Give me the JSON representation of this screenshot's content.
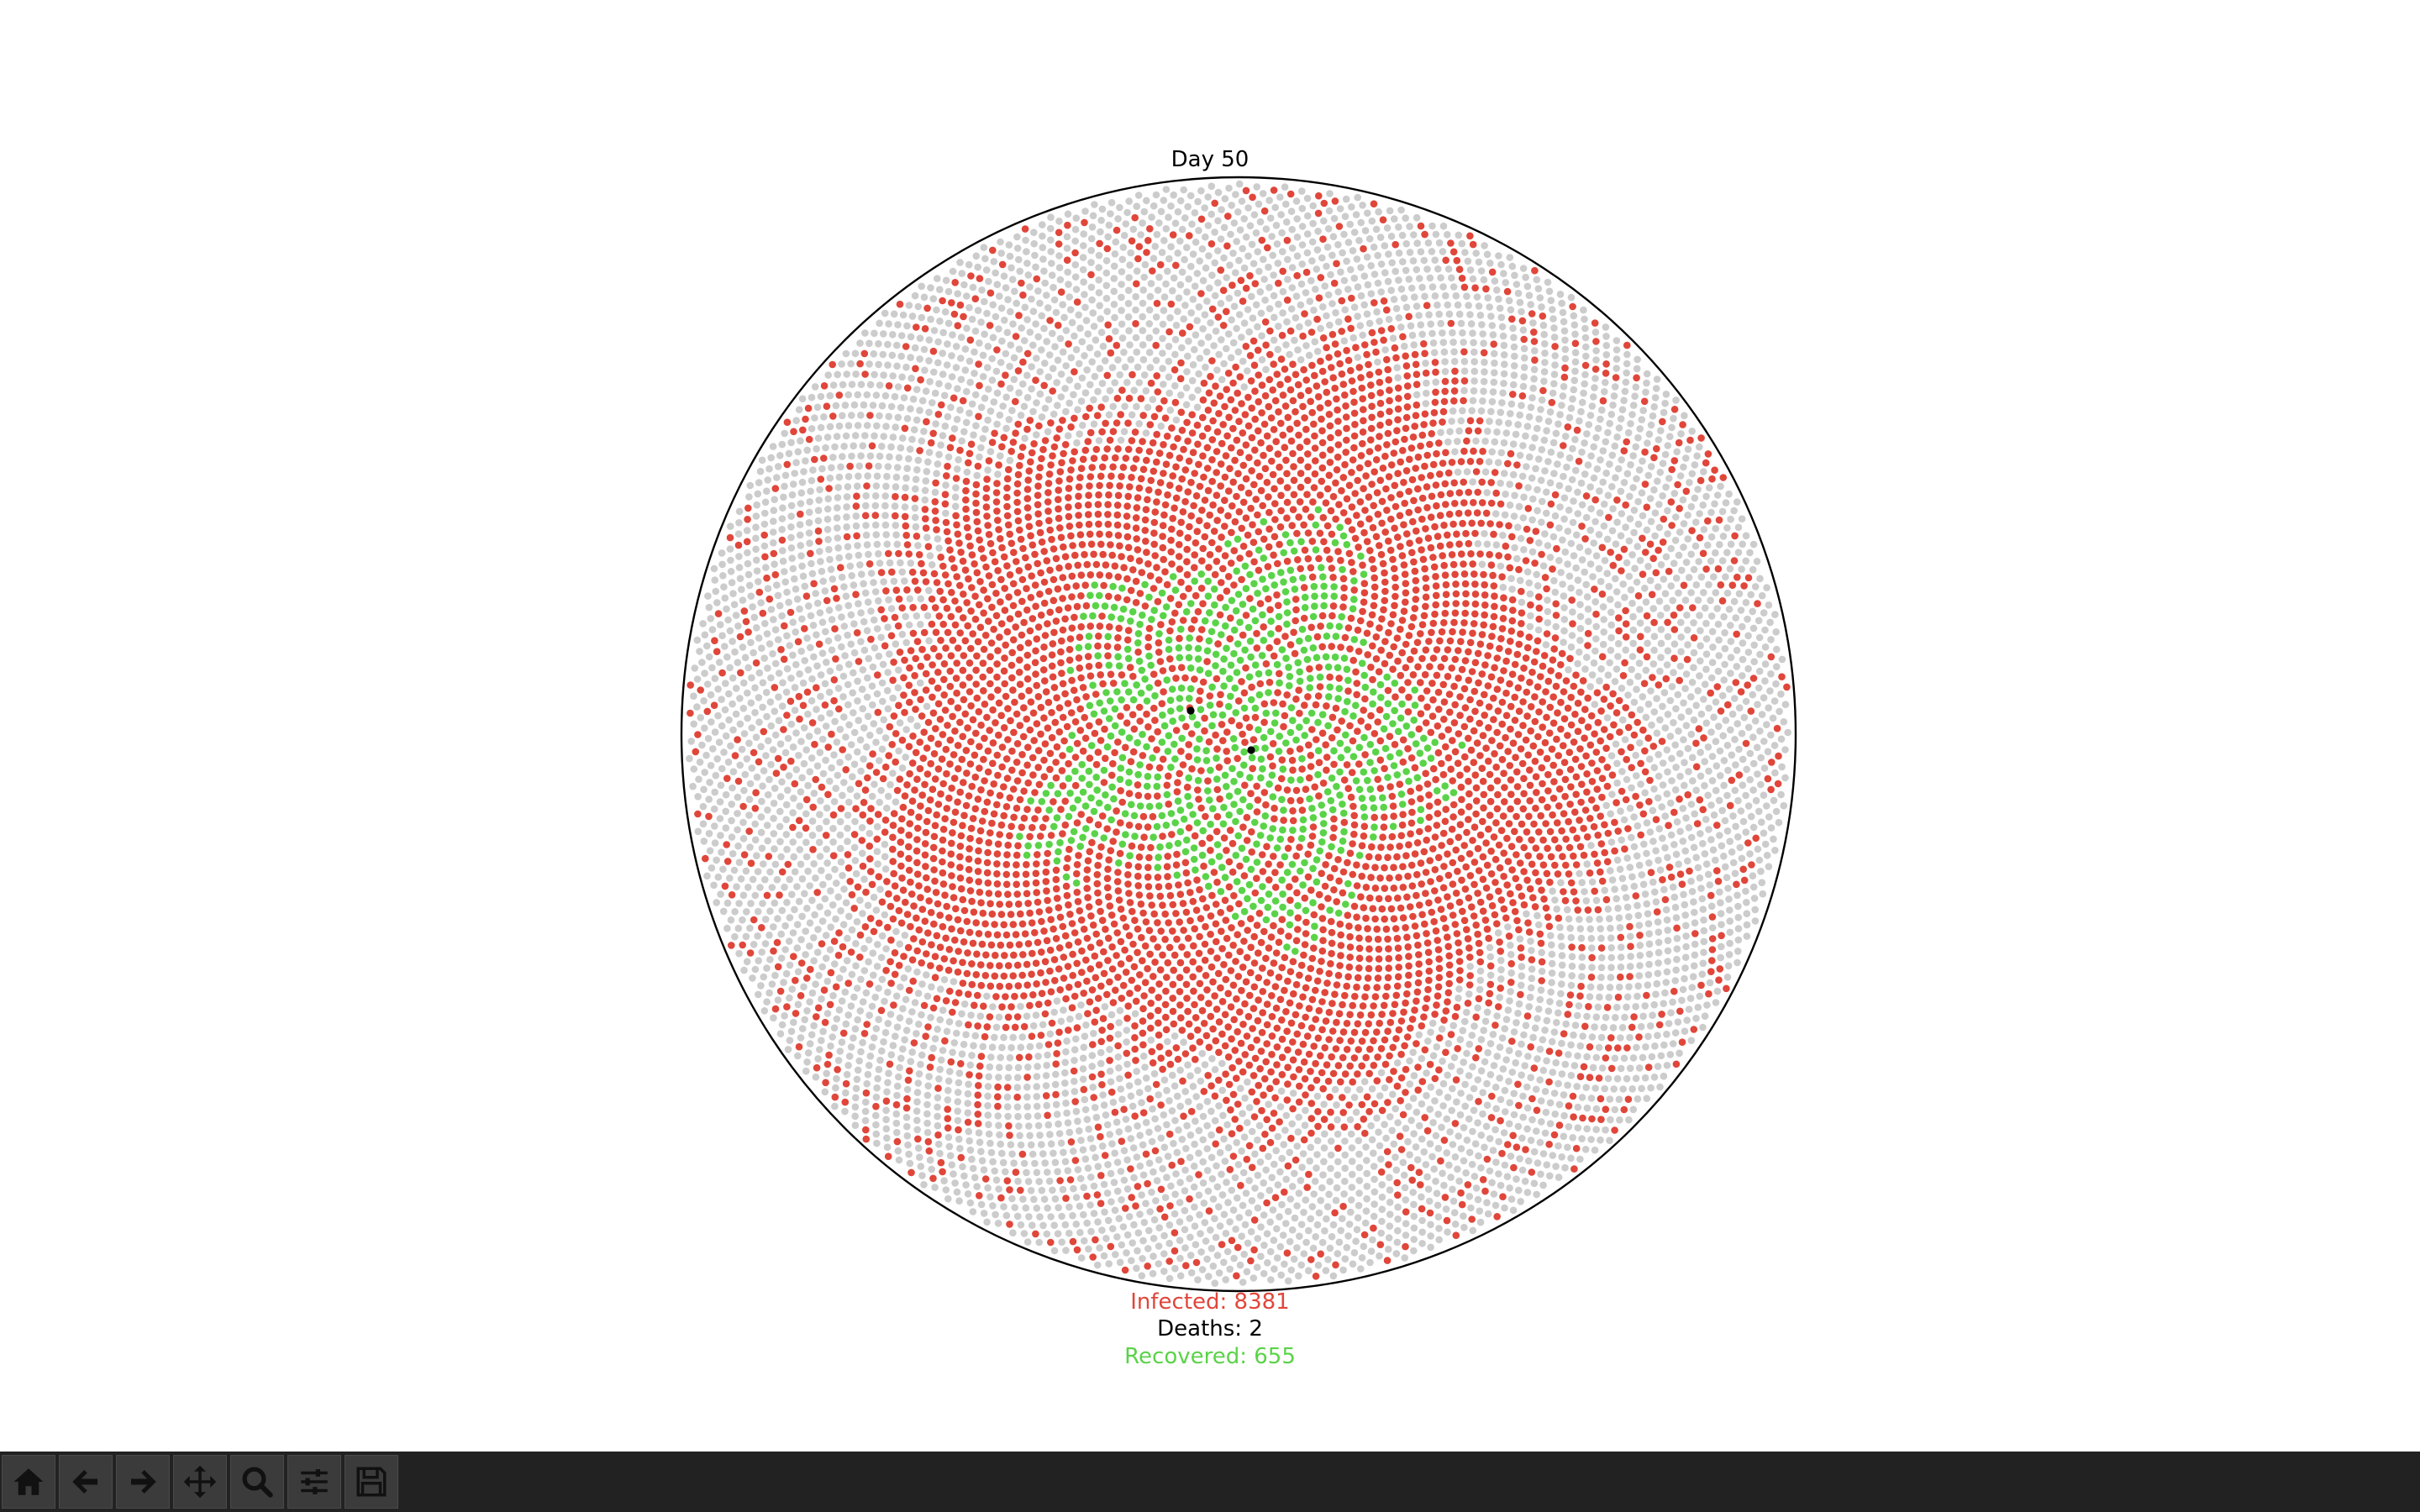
{
  "window": {
    "title": "Day 50"
  },
  "stats": {
    "infected_label": "Infected: 8381",
    "deaths_label": "Deaths: 2",
    "recovered_label": "Recovered: 655"
  },
  "colors": {
    "susceptible": "#cccccc",
    "infected": "#e0463a",
    "recovered": "#5ad348",
    "dead": "#000000",
    "boundary": "#000000",
    "toolbar_bg": "#222222",
    "icon": "#111111"
  },
  "toolbar": {
    "buttons": [
      {
        "name": "home-button",
        "icon": "home-icon"
      },
      {
        "name": "back-button",
        "icon": "arrow-left-icon"
      },
      {
        "name": "forward-button",
        "icon": "arrow-right-icon"
      },
      {
        "name": "pan-button",
        "icon": "move-icon"
      },
      {
        "name": "zoom-button",
        "icon": "magnifier-icon"
      },
      {
        "name": "configure-subplots-button",
        "icon": "sliders-icon"
      },
      {
        "name": "save-button",
        "icon": "floppy-disk-icon"
      }
    ]
  }
}
